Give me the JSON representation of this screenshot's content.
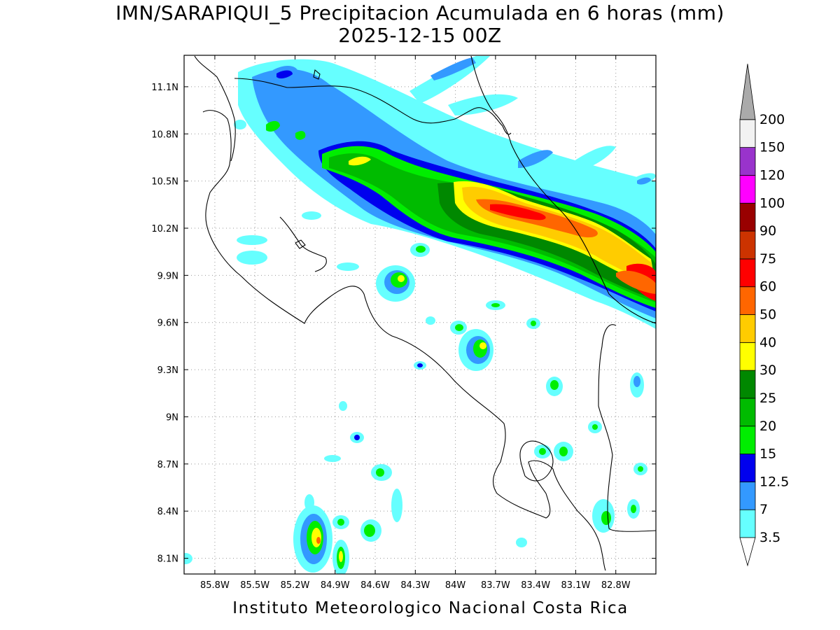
{
  "title": {
    "line1": "IMN/SARAPIQUI_5 Precipitacion Acumulada en 6 horas (mm)",
    "line2": "2025-12-15 00Z"
  },
  "footer": "Instituto Meteorologico Nacional Costa Rica",
  "axes": {
    "lon_range": [
      -86.03,
      -82.5
    ],
    "lat_range": [
      8.0,
      11.3
    ],
    "x_ticks": [
      {
        "value": -85.8,
        "label": "85.8W"
      },
      {
        "value": -85.5,
        "label": "85.5W"
      },
      {
        "value": -85.2,
        "label": "85.2W"
      },
      {
        "value": -84.9,
        "label": "84.9W"
      },
      {
        "value": -84.6,
        "label": "84.6W"
      },
      {
        "value": -84.3,
        "label": "84.3W"
      },
      {
        "value": -84.0,
        "label": "84W"
      },
      {
        "value": -83.7,
        "label": "83.7W"
      },
      {
        "value": -83.4,
        "label": "83.4W"
      },
      {
        "value": -83.1,
        "label": "83.1W"
      },
      {
        "value": -82.8,
        "label": "82.8W"
      }
    ],
    "y_ticks": [
      {
        "value": 8.1,
        "label": "8.1N"
      },
      {
        "value": 8.4,
        "label": "8.4N"
      },
      {
        "value": 8.7,
        "label": "8.7N"
      },
      {
        "value": 9.0,
        "label": "9N"
      },
      {
        "value": 9.3,
        "label": "9.3N"
      },
      {
        "value": 9.6,
        "label": "9.6N"
      },
      {
        "value": 9.9,
        "label": "9.9N"
      },
      {
        "value": 10.2,
        "label": "10.2N"
      },
      {
        "value": 10.5,
        "label": "10.5N"
      },
      {
        "value": 10.8,
        "label": "10.8N"
      },
      {
        "value": 11.1,
        "label": "11.1N"
      }
    ],
    "grid": true
  },
  "legend": {
    "bins": [
      {
        "label": "3.5",
        "color": "#66ffff"
      },
      {
        "label": "7",
        "color": "#3399ff"
      },
      {
        "label": "12.5",
        "color": "#0000ee"
      },
      {
        "label": "15",
        "color": "#00ee00"
      },
      {
        "label": "20",
        "color": "#00bb00"
      },
      {
        "label": "25",
        "color": "#008800"
      },
      {
        "label": "30",
        "color": "#ffff00"
      },
      {
        "label": "40",
        "color": "#ffcc00"
      },
      {
        "label": "50",
        "color": "#ff6600"
      },
      {
        "label": "60",
        "color": "#ff0000"
      },
      {
        "label": "75",
        "color": "#cc3300"
      },
      {
        "label": "90",
        "color": "#990000"
      },
      {
        "label": "100",
        "color": "#ff00ff"
      },
      {
        "label": "120",
        "color": "#9933cc"
      },
      {
        "label": "150",
        "color": "#f2f2f2"
      },
      {
        "label": "200",
        "color": "#aaaaaa"
      }
    ],
    "low_arrow_color": "#ffffff"
  },
  "colors": {
    "cyan": "#66ffff",
    "blue": "#3399ff",
    "navy": "#0000ee",
    "green": "#00ee00",
    "mid_green": "#00bb00",
    "dark_green": "#008800",
    "yellow": "#ffff00",
    "gold": "#ffcc00",
    "orange": "#ff6600",
    "red": "#ff0000",
    "rust": "#cc3300",
    "maroon": "#990000",
    "magenta": "#ff00ff",
    "purple": "#9933cc"
  }
}
